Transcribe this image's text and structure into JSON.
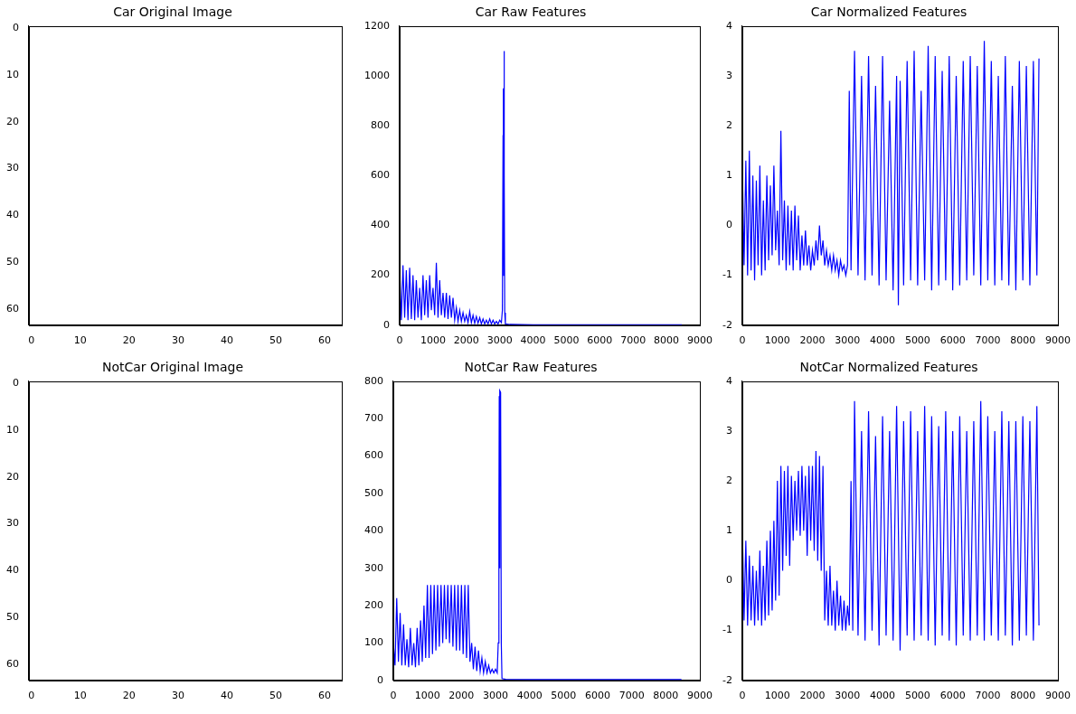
{
  "chart_data": [
    {
      "type": "image",
      "title": "Car Original Image",
      "xlim": [
        -0.5,
        63.5
      ],
      "ylim": [
        63.5,
        -0.5
      ],
      "xticks": [
        0,
        10,
        20,
        30,
        40,
        50,
        60
      ],
      "yticks": [
        0,
        10,
        20,
        30,
        40,
        50,
        60
      ],
      "grid": false
    },
    {
      "type": "line",
      "title": "Car Raw Features",
      "color": "#0000ff",
      "grid": false,
      "xlim": [
        0,
        9000
      ],
      "xticks": [
        0,
        1000,
        2000,
        3000,
        4000,
        5000,
        6000,
        7000,
        8000,
        9000
      ],
      "ylim": [
        0,
        1200
      ],
      "yticks": [
        0,
        200,
        400,
        600,
        800,
        1000,
        1200
      ],
      "x": [
        0,
        50,
        100,
        150,
        200,
        250,
        300,
        350,
        400,
        450,
        500,
        550,
        600,
        650,
        700,
        750,
        800,
        850,
        900,
        950,
        1000,
        1050,
        1100,
        1150,
        1200,
        1250,
        1300,
        1350,
        1400,
        1450,
        1500,
        1550,
        1600,
        1650,
        1700,
        1750,
        1800,
        1850,
        1900,
        1950,
        2000,
        2050,
        2100,
        2150,
        2200,
        2250,
        2300,
        2350,
        2400,
        2450,
        2500,
        2550,
        2600,
        2650,
        2700,
        2750,
        2800,
        2850,
        2900,
        2950,
        3000,
        3050,
        3080,
        3100,
        3110,
        3120,
        3130,
        3140,
        3150,
        3170,
        3300,
        4000,
        5000,
        6000,
        7000,
        8000,
        8460
      ],
      "values": [
        230,
        20,
        240,
        30,
        220,
        20,
        230,
        25,
        200,
        20,
        180,
        30,
        150,
        20,
        200,
        40,
        180,
        30,
        200,
        60,
        150,
        40,
        250,
        30,
        180,
        40,
        130,
        30,
        130,
        25,
        120,
        30,
        110,
        20,
        70,
        15,
        60,
        15,
        50,
        15,
        40,
        10,
        55,
        10,
        40,
        8,
        35,
        8,
        30,
        5,
        25,
        5,
        20,
        5,
        25,
        5,
        20,
        5,
        15,
        5,
        20,
        10,
        60,
        760,
        950,
        200,
        1100,
        600,
        50,
        5,
        3,
        2,
        2,
        2,
        2,
        2,
        2
      ]
    },
    {
      "type": "line",
      "title": "Car Normalized Features",
      "color": "#0000ff",
      "grid": false,
      "xlim": [
        0,
        9000
      ],
      "xticks": [
        0,
        1000,
        2000,
        3000,
        4000,
        5000,
        6000,
        7000,
        8000,
        9000
      ],
      "ylim": [
        -2,
        4
      ],
      "yticks": [
        -2,
        -1,
        0,
        1,
        2,
        3,
        4
      ],
      "x": [
        0,
        50,
        100,
        150,
        200,
        250,
        300,
        350,
        400,
        450,
        500,
        550,
        600,
        650,
        700,
        750,
        800,
        850,
        900,
        950,
        1000,
        1050,
        1100,
        1150,
        1200,
        1250,
        1300,
        1350,
        1400,
        1450,
        1500,
        1550,
        1600,
        1650,
        1700,
        1750,
        1800,
        1850,
        1900,
        1950,
        2000,
        2050,
        2100,
        2150,
        2200,
        2250,
        2300,
        2350,
        2400,
        2450,
        2500,
        2550,
        2600,
        2650,
        2700,
        2750,
        2800,
        2850,
        2900,
        2950,
        3000,
        3050,
        3100,
        3200,
        3300,
        3400,
        3500,
        3600,
        3700,
        3800,
        3900,
        4000,
        4100,
        4200,
        4300,
        4400,
        4450,
        4500,
        4600,
        4700,
        4800,
        4900,
        5000,
        5100,
        5200,
        5300,
        5400,
        5500,
        5600,
        5700,
        5800,
        5900,
        6000,
        6100,
        6200,
        6300,
        6400,
        6500,
        6600,
        6700,
        6800,
        6900,
        7000,
        7100,
        7200,
        7300,
        7400,
        7500,
        7600,
        7700,
        7800,
        7900,
        8000,
        8100,
        8200,
        8300,
        8400,
        8460
      ],
      "values": [
        1.2,
        -0.8,
        1.3,
        -1.0,
        1.5,
        -0.9,
        1.0,
        -1.1,
        0.9,
        -0.8,
        1.2,
        -1.0,
        0.5,
        -0.9,
        1.0,
        -0.7,
        0.8,
        -0.6,
        1.2,
        -0.5,
        0.3,
        -0.8,
        1.9,
        -0.7,
        0.5,
        -0.9,
        0.4,
        -0.8,
        0.3,
        -0.9,
        0.4,
        -0.7,
        0.2,
        -0.9,
        -0.2,
        -0.8,
        -0.1,
        -0.8,
        -0.4,
        -0.9,
        -0.5,
        -0.8,
        -0.3,
        -0.7,
        0,
        -0.6,
        -0.3,
        -0.8,
        -0.5,
        -0.8,
        -0.6,
        -0.9,
        -0.6,
        -0.9,
        -0.7,
        -1.0,
        -0.7,
        -0.9,
        -0.8,
        -1.0,
        -0.8,
        2.7,
        -0.9,
        3.5,
        -1.0,
        3.0,
        -1.1,
        3.4,
        -1.0,
        2.8,
        -1.2,
        3.4,
        -1.1,
        2.5,
        -1.3,
        3.0,
        -1.6,
        2.9,
        -1.2,
        3.3,
        -1.1,
        3.5,
        -1.2,
        2.7,
        -1.1,
        3.6,
        -1.3,
        3.4,
        -1.2,
        3.1,
        -1.1,
        3.4,
        -1.3,
        3.0,
        -1.2,
        3.3,
        -1.1,
        3.4,
        -1.0,
        3.2,
        -1.2,
        3.7,
        -1.1,
        3.3,
        -1.2,
        3.0,
        -1.1,
        3.4,
        -1.2,
        2.8,
        -1.3,
        3.3,
        -1.1,
        3.2,
        -1.2,
        3.3,
        -1.0,
        3.35
      ]
    },
    {
      "type": "image",
      "title": "NotCar Original Image",
      "xlim": [
        -0.5,
        63.5
      ],
      "ylim": [
        63.5,
        -0.5
      ],
      "xticks": [
        0,
        10,
        20,
        30,
        40,
        50,
        60
      ],
      "yticks": [
        0,
        10,
        20,
        30,
        40,
        50,
        60
      ],
      "grid": false
    },
    {
      "type": "line",
      "title": "NotCar Raw Features",
      "color": "#0000ff",
      "grid": false,
      "xlim": [
        0,
        9000
      ],
      "xticks": [
        0,
        1000,
        2000,
        3000,
        4000,
        5000,
        6000,
        7000,
        8000,
        9000
      ],
      "ylim": [
        0,
        800
      ],
      "yticks": [
        0,
        100,
        200,
        300,
        400,
        500,
        600,
        700,
        800
      ],
      "x": [
        0,
        50,
        100,
        150,
        200,
        250,
        300,
        350,
        400,
        450,
        500,
        550,
        600,
        650,
        700,
        750,
        800,
        850,
        900,
        950,
        1000,
        1050,
        1100,
        1150,
        1200,
        1250,
        1300,
        1350,
        1400,
        1450,
        1500,
        1550,
        1600,
        1650,
        1700,
        1750,
        1800,
        1850,
        1900,
        1950,
        2000,
        2050,
        2100,
        2150,
        2200,
        2250,
        2300,
        2350,
        2400,
        2450,
        2500,
        2550,
        2600,
        2650,
        2700,
        2750,
        2800,
        2850,
        2900,
        2950,
        3000,
        3050,
        3080,
        3100,
        3110,
        3120,
        3130,
        3150,
        3170,
        3190,
        3300,
        4000,
        5000,
        6000,
        7000,
        8000,
        8460
      ],
      "values": [
        100,
        40,
        220,
        50,
        180,
        40,
        150,
        40,
        110,
        35,
        140,
        40,
        100,
        35,
        140,
        40,
        160,
        50,
        200,
        60,
        255,
        60,
        255,
        70,
        255,
        80,
        255,
        90,
        255,
        100,
        255,
        110,
        255,
        100,
        255,
        90,
        255,
        80,
        255,
        80,
        255,
        70,
        255,
        60,
        255,
        50,
        100,
        30,
        90,
        25,
        80,
        25,
        60,
        20,
        50,
        20,
        40,
        20,
        30,
        20,
        30,
        20,
        100,
        430,
        760,
        300,
        775,
        770,
        100,
        5,
        3,
        2,
        2,
        2,
        2,
        2,
        2
      ]
    },
    {
      "type": "line",
      "title": "NotCar Normalized Features",
      "color": "#0000ff",
      "grid": false,
      "xlim": [
        0,
        9000
      ],
      "xticks": [
        0,
        1000,
        2000,
        3000,
        4000,
        5000,
        6000,
        7000,
        8000,
        9000
      ],
      "ylim": [
        -2,
        4
      ],
      "yticks": [
        -2,
        -1,
        0,
        1,
        2,
        3,
        4
      ],
      "x": [
        0,
        50,
        100,
        150,
        200,
        250,
        300,
        350,
        400,
        450,
        500,
        550,
        600,
        650,
        700,
        750,
        800,
        850,
        900,
        950,
        1000,
        1050,
        1100,
        1150,
        1200,
        1250,
        1300,
        1350,
        1400,
        1450,
        1500,
        1550,
        1600,
        1650,
        1700,
        1750,
        1800,
        1850,
        1900,
        1950,
        2000,
        2050,
        2100,
        2150,
        2200,
        2250,
        2300,
        2350,
        2400,
        2450,
        2500,
        2550,
        2600,
        2650,
        2700,
        2750,
        2800,
        2850,
        2900,
        2950,
        3000,
        3050,
        3100,
        3150,
        3200,
        3300,
        3400,
        3500,
        3600,
        3700,
        3800,
        3900,
        4000,
        4100,
        4200,
        4300,
        4400,
        4500,
        4600,
        4700,
        4800,
        4900,
        5000,
        5100,
        5200,
        5300,
        5400,
        5500,
        5600,
        5700,
        5800,
        5900,
        6000,
        6100,
        6200,
        6300,
        6400,
        6500,
        6600,
        6700,
        6800,
        6900,
        7000,
        7100,
        7200,
        7300,
        7400,
        7500,
        7600,
        7700,
        7800,
        7900,
        8000,
        8100,
        8200,
        8300,
        8400,
        8460
      ],
      "values": [
        1.1,
        -0.8,
        0.8,
        -0.9,
        0.5,
        -0.8,
        0.3,
        -0.9,
        0.2,
        -0.8,
        0.6,
        -0.9,
        0.3,
        -0.8,
        0.8,
        -0.7,
        1.0,
        -0.6,
        1.2,
        -0.4,
        2.0,
        -0.3,
        2.3,
        0.2,
        2.2,
        0.5,
        2.3,
        0.3,
        2.1,
        0.8,
        2.0,
        1.0,
        2.2,
        0.9,
        2.3,
        1.0,
        2.1,
        0.5,
        2.3,
        0.8,
        2.3,
        0.6,
        2.6,
        0.4,
        2.5,
        0.2,
        2.3,
        -0.8,
        0.2,
        -0.9,
        0.3,
        -0.9,
        -0.2,
        -1.0,
        0,
        -0.9,
        -0.3,
        -1.0,
        -0.4,
        -1.0,
        -0.5,
        -0.9,
        2.0,
        -1.0,
        3.6,
        -1.1,
        3.0,
        -1.2,
        3.4,
        -1.0,
        2.9,
        -1.3,
        3.3,
        -1.1,
        3.0,
        -1.2,
        3.5,
        -1.4,
        3.2,
        -1.1,
        3.4,
        -1.2,
        3.0,
        -1.1,
        3.5,
        -1.2,
        3.3,
        -1.3,
        3.1,
        -1.1,
        3.4,
        -1.2,
        3.0,
        -1.3,
        3.3,
        -1.1,
        3.0,
        -1.2,
        3.2,
        -1.1,
        3.6,
        -1.2,
        3.3,
        -1.1,
        3.0,
        -1.2,
        3.4,
        -1.1,
        3.2,
        -1.3,
        3.2,
        -1.2,
        3.3,
        -1.1,
        3.2,
        -1.2,
        3.5,
        -0.9
      ]
    }
  ]
}
